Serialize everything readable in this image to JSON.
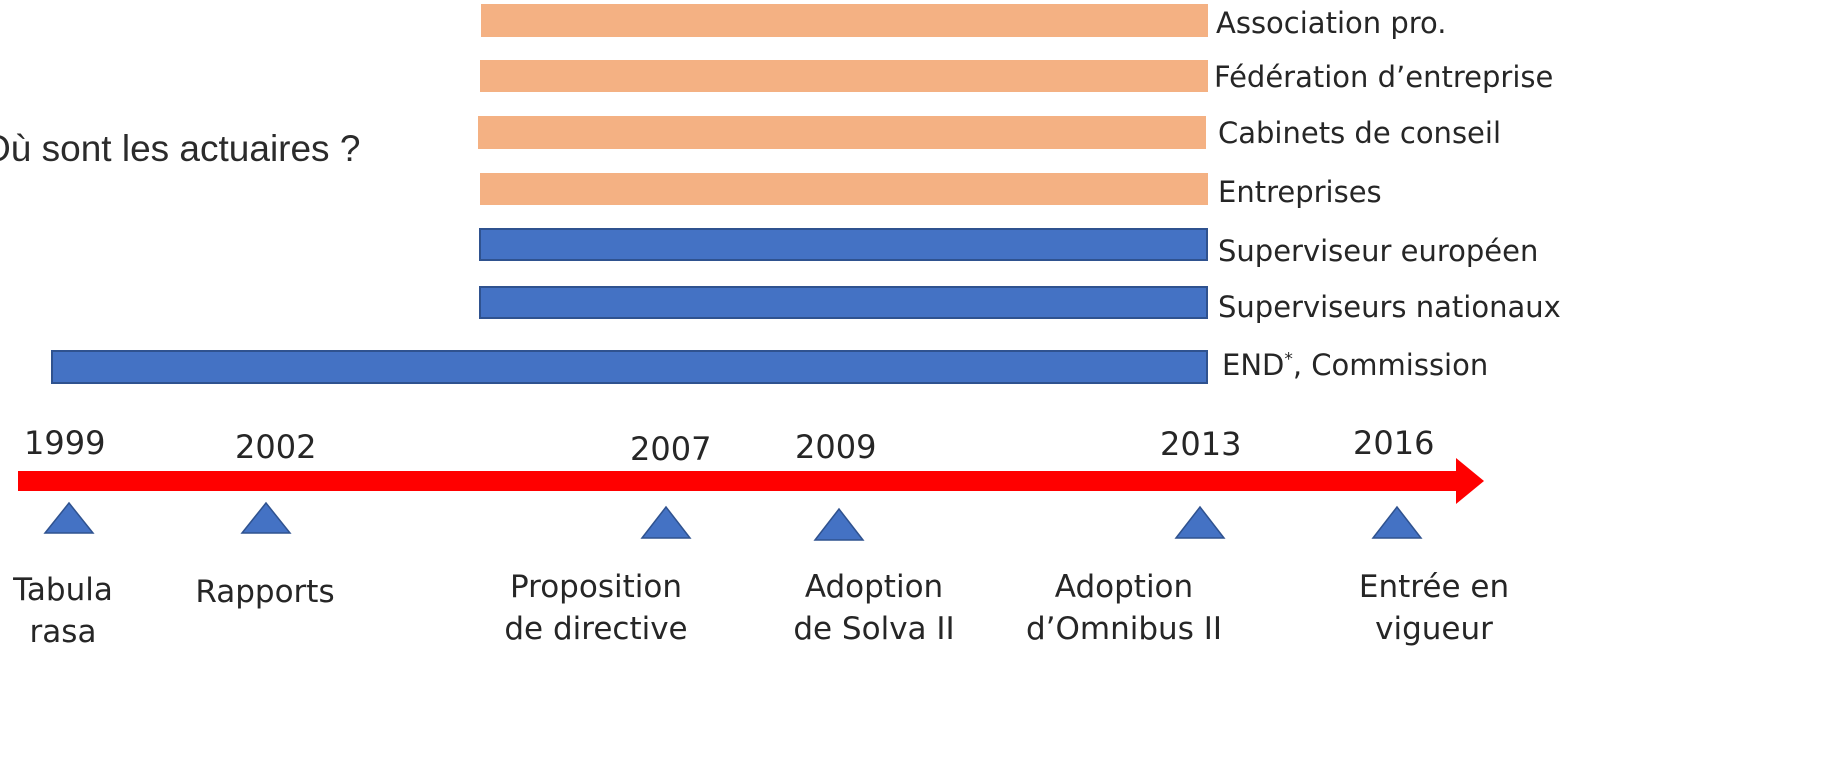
{
  "question": "Où sont les actuaires ?",
  "actors": [
    {
      "label": "Association pro.",
      "color": "#f4b183"
    },
    {
      "label": "Fédération d’entreprise",
      "color": "#f4b183"
    },
    {
      "label": "Cabinets de conseil",
      "color": "#f4b183"
    },
    {
      "label": "Entreprises",
      "color": "#f4b183"
    },
    {
      "label": "Superviseur européen",
      "color": "#4472c4"
    },
    {
      "label": "Superviseurs nationaux",
      "color": "#4472c4"
    },
    {
      "label_main": "END",
      "label_sup": "*",
      "label_rest": ", Commission",
      "color": "#4472c4"
    }
  ],
  "timeline": {
    "arrow_color": "#ff0000",
    "marker_color": "#4472c4",
    "years": [
      "1999",
      "2002",
      "2007",
      "2009",
      "2013",
      "2016"
    ],
    "events": [
      {
        "line1": "Tabula",
        "line2": "rasa"
      },
      {
        "line1": "Rapports",
        "line2": ""
      },
      {
        "line1": "Proposition",
        "line2": "de directive"
      },
      {
        "line1": "Adoption",
        "line2": "de Solva II"
      },
      {
        "line1": "Adoption",
        "line2": "d’Omnibus II"
      },
      {
        "line1": "Entrée en",
        "line2": "vigueur"
      }
    ]
  }
}
